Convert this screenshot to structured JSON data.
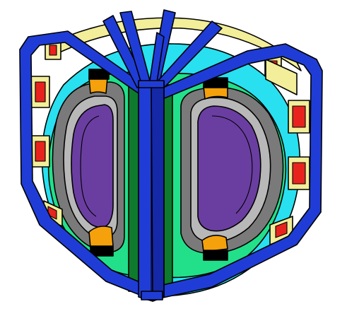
{
  "figure": {
    "kind": "tokamak-cutaway-cross-section",
    "colors": {
      "background": "#ffffff",
      "toroidal_field_coil": "#1f3dd6",
      "toroidal_field_coil_dark": "#1428a8",
      "poloidal_field_coil_casing": "#f2ee99",
      "poloidal_field_coil_winding": "#e8231e",
      "cryostat_shell": "#28e0f0",
      "vacuum_vessel": "#22e08a",
      "blanket": "#7a7a7a",
      "first_wall": "#b8b8b8",
      "plasma": "#6a3ea0",
      "divertor": "#f5a10c",
      "central_solenoid": "#0e7a2e",
      "support_block": "#000000"
    },
    "icons": [
      "tokamak-icon"
    ]
  }
}
